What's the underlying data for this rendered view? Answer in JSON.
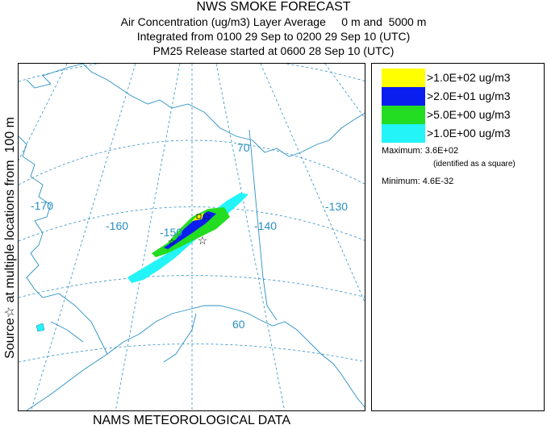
{
  "header": {
    "title": "NWS SMOKE FORECAST",
    "line1": "Air Concentration (ug/m3) Layer Average     0 m and  5000 m",
    "line2": "Integrated from 0100 29 Sep to 0200 29 Sep 10 (UTC)",
    "line3": "PM25 Release started at 0600 28 Sep 10 (UTC)"
  },
  "side_label": "Source☆ at multiple locations from  100 m",
  "map": {
    "longitude_labels": [
      "-170",
      "-160",
      "-150",
      "-140",
      "-130"
    ],
    "latitude_labels": [
      "70",
      "60"
    ],
    "colors": {
      "grid": "#2a8fc4",
      "coast": "#2a8fc4"
    }
  },
  "legend": {
    "entries": [
      {
        "label": ">1.0E+02 ug/m3",
        "color": "#ffff00"
      },
      {
        "label": ">2.0E+01 ug/m3",
        "color": "#0a1ef0"
      },
      {
        "label": ">5.0E+00 ug/m3",
        "color": "#22dd22"
      },
      {
        "label": ">1.0E+00 ug/m3",
        "color": "#22f4f8"
      }
    ],
    "maximum": "Maximum: 3.6E+02",
    "max_note": "(identified as a square)",
    "minimum": "Minimum: 4.6E-32"
  },
  "footer": "NAMS METEOROLOGICAL DATA"
}
